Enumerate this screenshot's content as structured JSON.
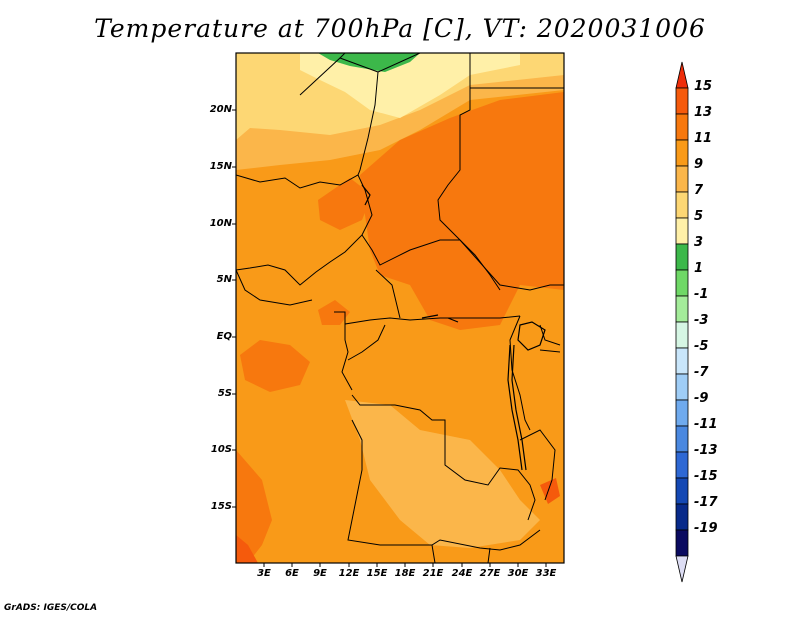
{
  "title": "Temperature at 700hPa [C], VT: 2020031006",
  "credit": "GrADS: IGES/COLA",
  "map": {
    "lat_labels": [
      "20N",
      "15N",
      "10N",
      "5N",
      "EQ",
      "5S",
      "10S",
      "15S"
    ],
    "lon_labels": [
      "3E",
      "6E",
      "9E",
      "12E",
      "15E",
      "18E",
      "21E",
      "24E",
      "27E",
      "30E",
      "33E"
    ]
  },
  "colorbar": {
    "labels": [
      "15",
      "13",
      "11",
      "9",
      "7",
      "5",
      "3",
      "1",
      "-1",
      "-3",
      "-5",
      "-7",
      "-9",
      "-11",
      "-13",
      "-15",
      "-17",
      "-19"
    ],
    "colors": [
      "#ee2d0a",
      "#f55a0c",
      "#f7780e",
      "#f99a18",
      "#fbb64a",
      "#fdd774",
      "#fff0a8",
      "#3cb84a",
      "#6fd866",
      "#a4ec9a",
      "#d6f6e4",
      "#c9e6fb",
      "#9fcdf6",
      "#6faaee",
      "#4a88e0",
      "#2e68d4",
      "#1448b4",
      "#082a8a",
      "#0a0a60",
      "#ddddf4"
    ]
  }
}
